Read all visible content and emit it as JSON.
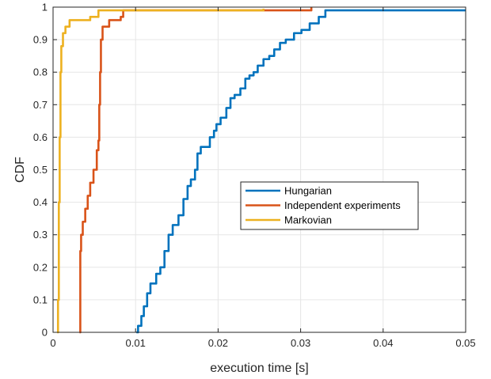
{
  "chart_data": {
    "type": "line",
    "title": "",
    "xlabel": "execution time [s]",
    "ylabel": "CDF",
    "xlim": [
      0,
      0.05
    ],
    "ylim": [
      0,
      1
    ],
    "xticks": [
      0,
      0.01,
      0.02,
      0.03,
      0.04,
      0.05
    ],
    "xtick_labels": [
      "0",
      "0.01",
      "0.02",
      "0.03",
      "0.04",
      "0.05"
    ],
    "yticks": [
      0,
      0.1,
      0.2,
      0.3,
      0.4,
      0.5,
      0.6,
      0.7,
      0.8,
      0.9,
      1
    ],
    "ytick_labels": [
      "0",
      "0.1",
      "0.2",
      "0.3",
      "0.4",
      "0.5",
      "0.6",
      "0.7",
      "0.8",
      "0.9",
      "1"
    ],
    "grid": true,
    "legend_position": "center-right",
    "series": [
      {
        "name": "Hungarian",
        "color": "#0072BD",
        "x": [
          0.0101,
          0.0103,
          0.0107,
          0.011,
          0.0114,
          0.0118,
          0.0125,
          0.013,
          0.0135,
          0.014,
          0.0145,
          0.0152,
          0.0158,
          0.0163,
          0.0167,
          0.0172,
          0.0175,
          0.0179,
          0.0182,
          0.0184,
          0.019,
          0.0195,
          0.0198,
          0.0203,
          0.021,
          0.0215,
          0.022,
          0.0227,
          0.0233,
          0.0238,
          0.0243,
          0.0248,
          0.0255,
          0.0262,
          0.0268,
          0.0275,
          0.0282,
          0.0292,
          0.0301,
          0.0311,
          0.0322,
          0.033,
          0.05
        ],
        "y": [
          0,
          0.02,
          0.05,
          0.08,
          0.12,
          0.15,
          0.18,
          0.2,
          0.25,
          0.3,
          0.33,
          0.36,
          0.41,
          0.45,
          0.47,
          0.5,
          0.55,
          0.57,
          0.57,
          0.57,
          0.6,
          0.62,
          0.64,
          0.66,
          0.69,
          0.72,
          0.73,
          0.75,
          0.78,
          0.79,
          0.8,
          0.82,
          0.84,
          0.85,
          0.87,
          0.89,
          0.9,
          0.92,
          0.93,
          0.95,
          0.97,
          0.99,
          0.99
        ]
      },
      {
        "name": "Independent experiments",
        "color": "#D95319",
        "x": [
          0.0032,
          0.0033,
          0.0034,
          0.0036,
          0.0039,
          0.0042,
          0.0045,
          0.0049,
          0.0053,
          0.0055,
          0.0056,
          0.0057,
          0.0058,
          0.006,
          0.0068,
          0.0082,
          0.0085,
          0.0255,
          0.0313
        ],
        "y": [
          0,
          0.25,
          0.3,
          0.34,
          0.38,
          0.42,
          0.46,
          0.5,
          0.56,
          0.59,
          0.7,
          0.8,
          0.9,
          0.94,
          0.96,
          0.97,
          0.99,
          0.99,
          1
        ],
        "note_last_segment_y": 0.995
      },
      {
        "name": "Markovian",
        "color": "#EDB120",
        "x": [
          0.0005,
          0.0006,
          0.0007,
          0.0008,
          0.0009,
          0.001,
          0.0012,
          0.0015,
          0.002,
          0.0025,
          0.0045,
          0.0055,
          0.0255
        ],
        "y": [
          0,
          0.1,
          0.4,
          0.6,
          0.8,
          0.88,
          0.92,
          0.94,
          0.96,
          0.96,
          0.97,
          0.99,
          0.995
        ]
      }
    ]
  }
}
